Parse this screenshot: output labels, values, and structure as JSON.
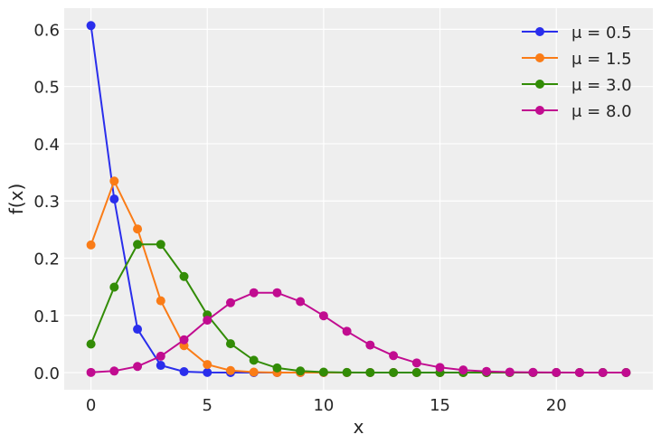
{
  "chart_data": {
    "type": "line",
    "title": "",
    "xlabel": "x",
    "ylabel": "f(x)",
    "xlim": [
      -1.15,
      24.15
    ],
    "ylim": [
      -0.03,
      0.637
    ],
    "xticks": [
      0,
      5,
      10,
      15,
      20
    ],
    "xtick_labels": [
      "0",
      "5",
      "10",
      "15",
      "20"
    ],
    "yticks": [
      0.0,
      0.1,
      0.2,
      0.3,
      0.4,
      0.5,
      0.6
    ],
    "ytick_labels": [
      "0.0",
      "0.1",
      "0.2",
      "0.3",
      "0.4",
      "0.5",
      "0.6"
    ],
    "grid": true,
    "background": "#eeeeee",
    "legend_position": "upper right",
    "x": [
      0,
      1,
      2,
      3,
      4,
      5,
      6,
      7,
      8,
      9,
      10,
      11,
      12,
      13,
      14,
      15,
      16,
      17,
      18,
      19,
      20,
      21,
      22,
      23
    ],
    "series": [
      {
        "name": "μ = 0.5",
        "color": "#2a2eec",
        "values": [
          0.6065,
          0.3033,
          0.0758,
          0.0126,
          0.0016,
          0.0002,
          0.0,
          0.0,
          0.0,
          0.0,
          0.0,
          0.0,
          0.0,
          0.0,
          0.0,
          0.0,
          0.0,
          0.0,
          0.0,
          0.0,
          0.0,
          0.0,
          0.0,
          0.0
        ]
      },
      {
        "name": "μ = 1.5",
        "color": "#fa7c17",
        "values": [
          0.2231,
          0.3347,
          0.251,
          0.1255,
          0.0471,
          0.0141,
          0.0035,
          0.0008,
          0.0001,
          0.0,
          0.0,
          0.0,
          0.0,
          0.0,
          0.0,
          0.0,
          0.0,
          0.0,
          0.0,
          0.0,
          0.0,
          0.0,
          0.0,
          0.0
        ]
      },
      {
        "name": "μ = 3.0",
        "color": "#328c06",
        "values": [
          0.0498,
          0.1494,
          0.224,
          0.224,
          0.168,
          0.1008,
          0.0504,
          0.0216,
          0.0081,
          0.0027,
          0.0008,
          0.0002,
          0.0001,
          0.0,
          0.0,
          0.0,
          0.0,
          0.0,
          0.0,
          0.0,
          0.0,
          0.0,
          0.0,
          0.0
        ]
      },
      {
        "name": "μ = 8.0",
        "color": "#c10c90",
        "values": [
          0.0003,
          0.0027,
          0.0107,
          0.0286,
          0.0573,
          0.0916,
          0.1221,
          0.1396,
          0.1396,
          0.1241,
          0.0993,
          0.0722,
          0.0481,
          0.0296,
          0.0169,
          0.009,
          0.0045,
          0.0021,
          0.0009,
          0.0004,
          0.0002,
          0.0001,
          0.0,
          0.0
        ]
      }
    ]
  }
}
